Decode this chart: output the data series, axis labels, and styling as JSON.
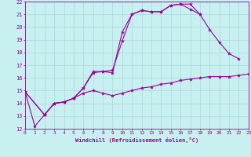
{
  "xlabel": "Windchill (Refroidissement éolien,°C)",
  "bg_color": "#c8f0f0",
  "grid_color": "#a8d8d8",
  "line_color": "#990099",
  "xlim": [
    0,
    23
  ],
  "ylim": [
    12,
    22
  ],
  "xticks": [
    0,
    1,
    2,
    3,
    4,
    5,
    6,
    7,
    8,
    9,
    10,
    11,
    12,
    13,
    14,
    15,
    16,
    17,
    18,
    19,
    20,
    21,
    22,
    23
  ],
  "yticks": [
    12,
    13,
    14,
    15,
    16,
    17,
    18,
    19,
    20,
    21,
    22
  ],
  "line1_x": [
    0,
    1,
    2,
    3,
    4,
    5,
    6,
    7,
    8,
    9,
    10,
    11,
    12,
    13,
    14,
    15,
    16,
    17,
    18
  ],
  "line1_y": [
    14.9,
    12.2,
    13.1,
    14.0,
    14.1,
    14.4,
    15.2,
    16.5,
    16.5,
    16.6,
    18.9,
    21.0,
    21.3,
    21.2,
    21.2,
    21.7,
    21.8,
    21.8,
    21.0
  ],
  "line2_x": [
    0,
    2,
    3,
    4,
    5,
    6,
    7,
    8,
    9,
    10,
    11,
    12,
    13,
    14,
    15,
    16,
    17,
    18,
    19,
    20,
    21,
    22
  ],
  "line2_y": [
    14.9,
    13.1,
    14.0,
    14.1,
    14.4,
    15.2,
    16.4,
    16.5,
    16.4,
    19.6,
    21.0,
    21.3,
    21.2,
    21.2,
    21.7,
    21.8,
    21.4,
    21.0,
    19.8,
    18.8,
    17.9,
    17.5
  ],
  "line3_x": [
    0,
    2,
    3,
    4,
    5,
    6,
    7,
    8,
    9,
    10,
    11,
    12,
    13,
    14,
    15,
    16,
    17,
    18,
    19,
    20,
    21,
    22,
    23
  ],
  "line3_y": [
    14.9,
    13.1,
    14.0,
    14.1,
    14.4,
    14.8,
    15.0,
    14.8,
    14.6,
    14.8,
    15.0,
    15.2,
    15.3,
    15.5,
    15.6,
    15.8,
    15.9,
    16.0,
    16.1,
    16.1,
    16.1,
    16.2,
    16.3
  ]
}
